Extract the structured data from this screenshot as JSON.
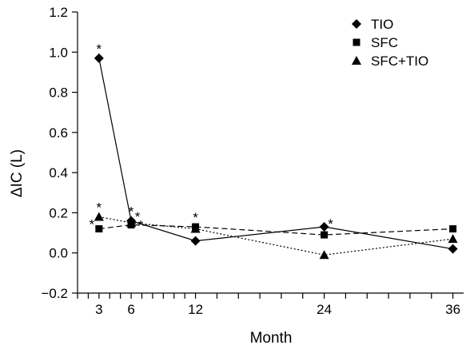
{
  "chart_data": {
    "type": "line",
    "title": "",
    "xlabel": "Month",
    "ylabel": "ΔIC (L)",
    "xlim": [
      1,
      37
    ],
    "ylim": [
      -0.2,
      1.2
    ],
    "x_ticks": [
      3,
      6,
      12,
      24,
      36
    ],
    "x_minor_ticks": [
      1,
      2,
      3,
      4,
      5,
      6,
      7,
      8,
      9,
      10,
      11,
      12,
      14,
      16,
      18,
      20,
      22,
      24,
      26,
      28,
      30,
      32,
      34,
      36
    ],
    "y_ticks": [
      -0.2,
      0.0,
      0.2,
      0.4,
      0.6,
      0.8,
      1.0,
      1.2
    ],
    "y_tick_labels": [
      "−0.2",
      "0.0",
      "0.2",
      "0.4",
      "0.6",
      "0.8",
      "1.0",
      "1.2"
    ],
    "x_tick_labels": [
      "3",
      "6",
      "12",
      "24",
      "36"
    ],
    "legend_position": "top-right",
    "grid": false,
    "series": [
      {
        "name": "TIO",
        "marker": "diamond",
        "line_style": "solid",
        "x": [
          3,
          6,
          12,
          24,
          36
        ],
        "y": [
          0.97,
          0.16,
          0.06,
          0.13,
          0.02
        ]
      },
      {
        "name": "SFC",
        "marker": "square",
        "line_style": "dashed",
        "x": [
          3,
          6,
          12,
          24,
          36
        ],
        "y": [
          0.12,
          0.14,
          0.13,
          0.09,
          0.12
        ]
      },
      {
        "name": "SFC+TIO",
        "marker": "triangle",
        "line_style": "dotted",
        "x": [
          3,
          6,
          12,
          24,
          36
        ],
        "y": [
          0.18,
          0.15,
          0.12,
          -0.01,
          0.07
        ]
      }
    ],
    "annotations": [
      {
        "text": "*",
        "x": 3,
        "y": 0.97,
        "dx": 0,
        "dy": -12
      },
      {
        "text": "*",
        "x": 3,
        "y": 0.18,
        "dx": 0,
        "dy": -12
      },
      {
        "text": "*",
        "x": 3,
        "y": 0.12,
        "dx": -9,
        "dy": -6
      },
      {
        "text": "*",
        "x": 6,
        "y": 0.16,
        "dx": 0,
        "dy": -12
      },
      {
        "text": "*",
        "x": 6,
        "y": 0.15,
        "dx": 8,
        "dy": -8
      },
      {
        "text": "*",
        "x": 6,
        "y": 0.14,
        "dx": 12,
        "dy": 0
      },
      {
        "text": "*",
        "x": 12,
        "y": 0.13,
        "dx": 0,
        "dy": -12
      },
      {
        "text": "*",
        "x": 24,
        "y": 0.13,
        "dx": 8,
        "dy": -4
      }
    ]
  }
}
